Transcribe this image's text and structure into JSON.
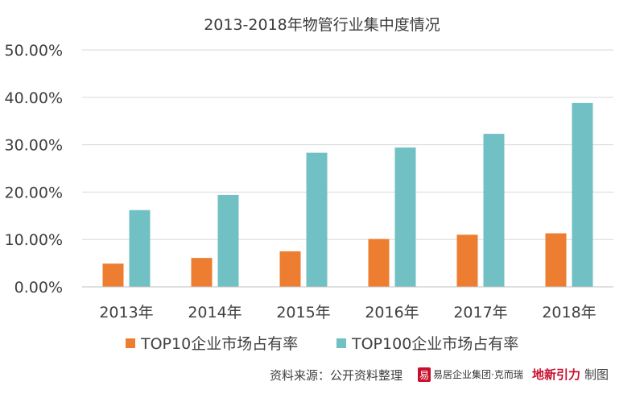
{
  "chart_data": {
    "type": "bar",
    "title": "2013-2018年物管行业集中度情况",
    "xlabel": "",
    "ylabel": "",
    "categories": [
      "2013年",
      "2014年",
      "2015年",
      "2016年",
      "2017年",
      "2018年"
    ],
    "series": [
      {
        "name": "TOP10企业市场占有率",
        "values": [
          4.9,
          6.1,
          7.5,
          10.1,
          11.0,
          11.3
        ],
        "color": "#ed7d31"
      },
      {
        "name": "TOP100企业市场占有率",
        "values": [
          16.2,
          19.4,
          28.3,
          29.4,
          32.3,
          38.8
        ],
        "color": "#71c0c4"
      }
    ],
    "ylim": [
      0,
      50
    ],
    "yticks": [
      "0.00%",
      "10.00%",
      "20.00%",
      "30.00%",
      "40.00%",
      "50.00%"
    ],
    "grid": true,
    "legend_position": "bottom"
  },
  "footer": {
    "source": "资料来源：公开资料整理",
    "credit_brand": "易居企业集团·克而瑞",
    "credit_art": "地新引力",
    "credit_suffix": "制图"
  }
}
